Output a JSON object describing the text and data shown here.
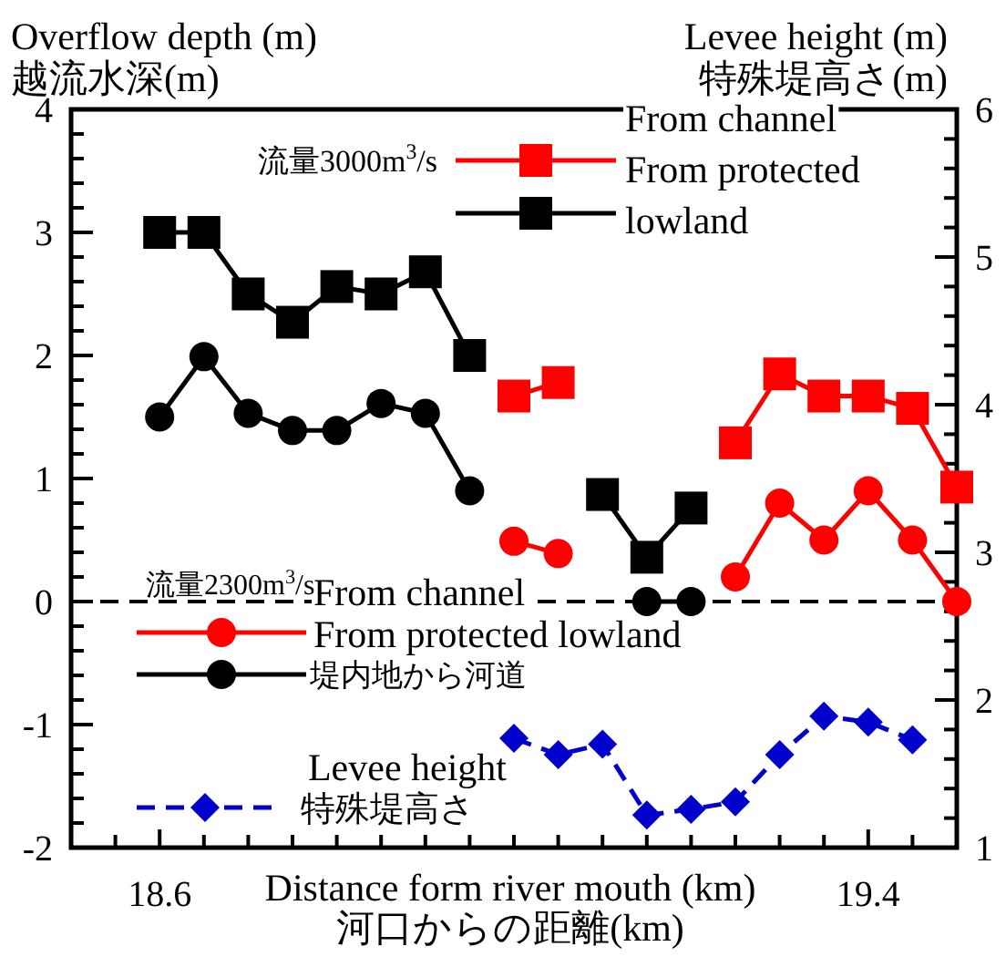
{
  "chart_data": {
    "type": "line",
    "xlabel": "Distance form river mouth (km)\n河口からの距離(km)",
    "ylabel": "Overflow depth (m)\n越流水深(m)",
    "y2label": "Levee height (m)\n特殊堤高さ(m)",
    "x": [
      18.6,
      18.65,
      18.7,
      18.75,
      18.8,
      18.85,
      18.9,
      18.95,
      19.0,
      19.05,
      19.1,
      19.15,
      19.2,
      19.25,
      19.3,
      19.35,
      19.4,
      19.45,
      19.5
    ],
    "xlim": [
      18.5,
      19.5
    ],
    "xticks": [
      {
        "value": 18.55,
        "label": null
      },
      18.6,
      {
        "value": 18.65,
        "label": null
      },
      {
        "value": 18.7,
        "label": null
      },
      {
        "value": 18.75,
        "label": null
      },
      {
        "value": 18.8,
        "label": null
      },
      {
        "value": 18.85,
        "label": null
      },
      {
        "value": 18.9,
        "label": null
      },
      {
        "value": 18.95,
        "label": null
      },
      {
        "value": 19.0,
        "label": null
      },
      {
        "value": 19.05,
        "label": null
      },
      {
        "value": 19.1,
        "label": null
      },
      {
        "value": 19.15,
        "label": null
      },
      {
        "value": 19.2,
        "label": null
      },
      {
        "value": 19.25,
        "label": null
      },
      {
        "value": 19.3,
        "label": null
      },
      {
        "value": 19.35,
        "label": null
      },
      19.4,
      {
        "value": 19.45,
        "label": null
      }
    ],
    "ylim": [
      -2,
      4
    ],
    "yticks": [
      -2,
      -1,
      0,
      1,
      2,
      3,
      4
    ],
    "y2lim": [
      1,
      6
    ],
    "y2ticks": [
      1,
      2,
      3,
      4,
      5,
      6
    ],
    "legend": "left",
    "series": [
      {
        "name": "From protected",
        "color": "#ff0000",
        "marker": "square",
        "values": [
          null,
          null,
          null,
          null,
          null,
          null,
          null,
          null,
          1.67,
          1.78,
          null,
          null,
          null,
          1.29,
          1.85,
          1.67,
          1.67,
          1.57,
          0.93
        ]
      },
      {
        "name": "lowland",
        "color": "#000000",
        "marker": "square",
        "values": [
          3.0,
          3.0,
          2.5,
          2.27,
          2.56,
          2.5,
          2.68,
          2.0,
          null,
          null,
          0.87,
          0.36,
          0.76,
          null,
          null,
          null,
          null,
          null,
          null
        ]
      },
      {
        "name": "From protected lowland",
        "color": "#ff0000",
        "marker": "circle",
        "values": [
          null,
          null,
          null,
          null,
          null,
          null,
          null,
          null,
          0.49,
          0.39,
          null,
          null,
          null,
          0.2,
          0.8,
          0.5,
          0.9,
          0.5,
          0.0
        ]
      },
      {
        "name": "堤内地から河道",
        "color": "#000000",
        "marker": "circle",
        "values": [
          1.5,
          1.99,
          1.53,
          1.39,
          1.39,
          1.61,
          1.53,
          0.9,
          null,
          null,
          null,
          0,
          0,
          null,
          null,
          null,
          null,
          null,
          null
        ]
      },
      {
        "name": "Levee height\n特殊堤高さ",
        "color": "#0000cc",
        "marker": "diamond",
        "line_style": "dashed",
        "axis": "y2",
        "values": [
          null,
          null,
          null,
          null,
          null,
          null,
          null,
          null,
          1.74,
          1.63,
          1.7,
          1.22,
          1.26,
          1.31,
          1.63,
          1.89,
          1.85,
          1.73,
          null
        ]
      }
    ],
    "ref_lines": [
      {
        "axis": "y",
        "value": 0,
        "line_style": "dashed",
        "color": "#000000"
      }
    ],
    "annotations": [
      "流量3000m$^{3}$/s",
      "From channel",
      "流量2300m$^{3}$/s",
      "From channel"
    ]
  }
}
